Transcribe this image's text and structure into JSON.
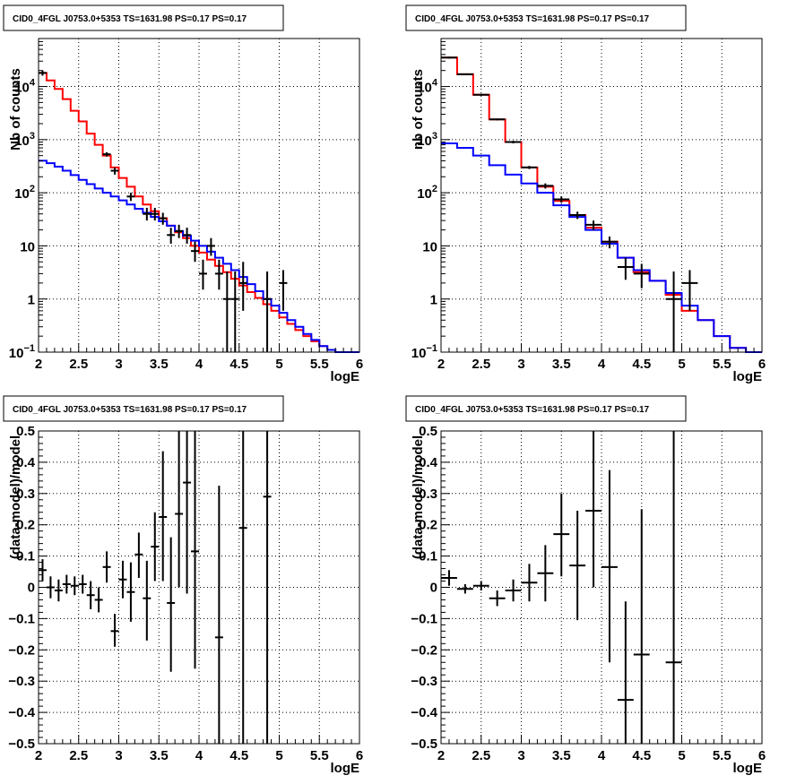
{
  "chart_data": [
    {
      "type": "line",
      "title": "CID0_4FGL J0753.0+5353 TS=1631.98 PS=0.17 PS=0.17",
      "xlabel": "logE",
      "ylabel": "Nb of counts",
      "xlim": [
        2,
        6
      ],
      "ylim": [
        0.1,
        80000
      ],
      "yscale": "log",
      "grid": true,
      "xticks": [
        "2",
        "2.5",
        "3",
        "3.5",
        "4",
        "4.5",
        "5",
        "5.5",
        "6"
      ],
      "yticks": [
        {
          "value": 0.1,
          "label": "10",
          "sup": "−1"
        },
        {
          "value": 1,
          "label": "1",
          "sup": ""
        },
        {
          "value": 10,
          "label": "10",
          "sup": ""
        },
        {
          "value": 100,
          "label": "10",
          "sup": "2"
        },
        {
          "value": 1000,
          "label": "10",
          "sup": "3"
        },
        {
          "value": 10000,
          "label": "10",
          "sup": "4"
        }
      ],
      "series": [
        {
          "kind": "step",
          "color": "#ff0000",
          "binwidth": 0.1,
          "x": [
            2.0,
            2.1,
            2.2,
            2.3,
            2.4,
            2.5,
            2.6,
            2.7,
            2.8,
            2.9,
            3.0,
            3.1,
            3.2,
            3.3,
            3.4,
            3.5,
            3.6,
            3.7,
            3.8,
            3.9,
            4.0,
            4.1,
            4.2,
            4.3,
            4.4,
            4.5,
            4.6,
            4.7,
            4.8,
            4.9,
            5.0,
            5.1,
            5.2,
            5.3,
            5.4,
            5.5,
            5.6,
            5.7,
            5.8,
            5.9
          ],
          "y": [
            18000,
            13000,
            9000,
            5800,
            3500,
            2200,
            1300,
            800,
            500,
            300,
            190,
            130,
            85,
            60,
            45,
            33,
            24,
            18,
            14,
            10,
            7.5,
            5.5,
            4.2,
            3.2,
            2.4,
            1.8,
            1.35,
            1.05,
            0.8,
            0.6,
            0.45,
            0.34,
            0.26,
            0.2,
            0.16,
            0.13,
            0.11,
            0.1,
            0.1,
            0.1
          ]
        },
        {
          "kind": "step",
          "color": "#0000ff",
          "binwidth": 0.1,
          "x": [
            2.0,
            2.1,
            2.2,
            2.3,
            2.4,
            2.5,
            2.6,
            2.7,
            2.8,
            2.9,
            3.0,
            3.1,
            3.2,
            3.3,
            3.4,
            3.5,
            3.6,
            3.7,
            3.8,
            3.9,
            4.0,
            4.1,
            4.2,
            4.3,
            4.4,
            4.5,
            4.6,
            4.7,
            4.8,
            4.9,
            5.0,
            5.1,
            5.2,
            5.3,
            5.4,
            5.5,
            5.6,
            5.7,
            5.8,
            5.9
          ],
          "y": [
            400,
            360,
            310,
            260,
            215,
            175,
            145,
            120,
            100,
            85,
            72,
            60,
            50,
            42,
            35,
            29,
            24,
            19,
            15.5,
            12.5,
            10,
            7.8,
            6,
            4.6,
            3.5,
            2.6,
            1.9,
            1.4,
            1.0,
            0.75,
            0.55,
            0.4,
            0.3,
            0.22,
            0.17,
            0.13,
            0.11,
            0.1,
            0.1,
            0.1
          ]
        },
        {
          "kind": "points",
          "color": "#000000",
          "binwidth": 0.1,
          "x": [
            2.05,
            2.85,
            2.95,
            3.15,
            3.35,
            3.45,
            3.55,
            3.65,
            3.75,
            3.85,
            3.95,
            4.05,
            4.15,
            4.25,
            4.35,
            4.45,
            4.55,
            4.85,
            5.05
          ],
          "y": [
            18000,
            530,
            260,
            85,
            40,
            40,
            33,
            16,
            19,
            16,
            8,
            3,
            10,
            3,
            1,
            1,
            2,
            1,
            2
          ],
          "ylo": [
            16000,
            480,
            220,
            70,
            30,
            30,
            25,
            11,
            14,
            11,
            5,
            1.5,
            6.5,
            1.5,
            0.1,
            0.1,
            0.6,
            0.1,
            0.6
          ],
          "yhi": [
            20000,
            580,
            300,
            100,
            52,
            52,
            42,
            22,
            25,
            22,
            12,
            5.5,
            14,
            5.5,
            3.3,
            3.3,
            5,
            3.3,
            3.5
          ]
        }
      ]
    },
    {
      "type": "line",
      "title": "CID0_4FGL J0753.0+5353 TS=1631.98 PS=0.17 PS=0.17",
      "xlabel": "logE",
      "ylabel": "nb of counts",
      "xlim": [
        2,
        6
      ],
      "ylim": [
        0.1,
        80000
      ],
      "yscale": "log",
      "grid": true,
      "xticks": [
        "2",
        "2.5",
        "3",
        "3.5",
        "4",
        "4.5",
        "5",
        "5.5",
        "6"
      ],
      "yticks": [
        {
          "value": 0.1,
          "label": "10",
          "sup": "−1"
        },
        {
          "value": 1,
          "label": "1",
          "sup": ""
        },
        {
          "value": 10,
          "label": "10",
          "sup": ""
        },
        {
          "value": 100,
          "label": "10",
          "sup": "2"
        },
        {
          "value": 1000,
          "label": "10",
          "sup": "3"
        },
        {
          "value": 10000,
          "label": "10",
          "sup": "4"
        }
      ],
      "series": [
        {
          "kind": "step",
          "color": "#ff0000",
          "binwidth": 0.2,
          "x": [
            2.0,
            2.2,
            2.4,
            2.6,
            2.8,
            3.0,
            3.2,
            3.4,
            3.6,
            3.8,
            4.0,
            4.2,
            4.4,
            4.6,
            4.8,
            5.0,
            5.2,
            5.4,
            5.6,
            5.8
          ],
          "y": [
            35000,
            17000,
            7000,
            2400,
            900,
            300,
            130,
            70,
            38,
            22,
            12,
            6,
            3.2,
            2.2,
            1.2,
            0.6,
            0.4,
            0.2,
            0.12,
            0.1
          ]
        },
        {
          "kind": "step",
          "color": "#0000ff",
          "binwidth": 0.2,
          "x": [
            2.0,
            2.2,
            2.4,
            2.6,
            2.8,
            3.0,
            3.2,
            3.4,
            3.6,
            3.8,
            4.0,
            4.2,
            4.4,
            4.6,
            4.8,
            5.0,
            5.2,
            5.4,
            5.6,
            5.8
          ],
          "y": [
            850,
            700,
            500,
            330,
            220,
            150,
            100,
            58,
            35,
            20,
            11,
            6,
            3.5,
            2.2,
            1.3,
            0.75,
            0.4,
            0.2,
            0.12,
            0.1
          ]
        },
        {
          "kind": "points",
          "color": "#000000",
          "binwidth": 0.2,
          "x": [
            2.1,
            2.3,
            2.5,
            2.7,
            2.9,
            3.1,
            3.3,
            3.5,
            3.7,
            3.9,
            4.1,
            4.3,
            4.5,
            4.9,
            5.1
          ],
          "y": [
            35000,
            17000,
            7000,
            2400,
            900,
            300,
            135,
            75,
            38,
            25,
            12,
            4,
            3,
            1,
            2
          ],
          "ylo": [
            33500,
            16400,
            6700,
            2300,
            850,
            280,
            120,
            65,
            32,
            20,
            9,
            2.3,
            1.6,
            0.1,
            0.6
          ],
          "yhi": [
            36500,
            17600,
            7300,
            2500,
            950,
            320,
            150,
            85,
            44,
            30,
            15,
            6,
            4.6,
            3.3,
            3.5
          ]
        }
      ]
    },
    {
      "type": "scatter",
      "title": "CID0_4FGL J0753.0+5353 TS=1631.98 PS=0.17 PS=0.17",
      "xlabel": "logE",
      "ylabel": "(data-model)/model",
      "xlim": [
        2,
        6
      ],
      "ylim": [
        -0.5,
        0.5
      ],
      "yscale": "linear",
      "grid": true,
      "xticks": [
        "2",
        "2.5",
        "3",
        "3.5",
        "4",
        "4.5",
        "5",
        "5.5",
        "6"
      ],
      "yticks": [
        {
          "value": -0.5,
          "label": "−0.5",
          "sup": ""
        },
        {
          "value": -0.4,
          "label": "−0.4",
          "sup": ""
        },
        {
          "value": -0.3,
          "label": "−0.3",
          "sup": ""
        },
        {
          "value": -0.2,
          "label": "−0.2",
          "sup": ""
        },
        {
          "value": -0.1,
          "label": "−0.1",
          "sup": ""
        },
        {
          "value": 0,
          "label": "0",
          "sup": ""
        },
        {
          "value": 0.1,
          "label": "0.1",
          "sup": ""
        },
        {
          "value": 0.2,
          "label": "0.2",
          "sup": ""
        },
        {
          "value": 0.3,
          "label": "0.3",
          "sup": ""
        },
        {
          "value": 0.4,
          "label": "0.4",
          "sup": ""
        },
        {
          "value": 0.5,
          "label": "0.5",
          "sup": ""
        }
      ],
      "series": [
        {
          "kind": "points",
          "color": "#000000",
          "binwidth": 0.1,
          "x": [
            2.05,
            2.15,
            2.25,
            2.35,
            2.45,
            2.55,
            2.65,
            2.75,
            2.85,
            2.95,
            3.05,
            3.15,
            3.25,
            3.35,
            3.45,
            3.55,
            3.65,
            3.75,
            3.85,
            3.95,
            4.25,
            4.55,
            4.85
          ],
          "y": [
            0.055,
            0.0,
            -0.01,
            0.01,
            0.005,
            0.01,
            -0.025,
            -0.04,
            0.065,
            -0.14,
            0.025,
            -0.015,
            0.105,
            -0.035,
            0.13,
            0.225,
            -0.05,
            0.235,
            0.335,
            0.115,
            -0.16,
            0.19,
            0.29
          ],
          "ylo": [
            0.02,
            -0.035,
            -0.045,
            -0.02,
            -0.025,
            -0.02,
            -0.07,
            -0.08,
            0.015,
            -0.19,
            -0.035,
            -0.11,
            0.03,
            -0.17,
            0.02,
            0.02,
            -0.27,
            0.0,
            -0.02,
            -0.26,
            -0.5,
            -0.5,
            -0.5
          ],
          "yhi": [
            0.09,
            0.035,
            0.025,
            0.04,
            0.035,
            0.04,
            0.02,
            0.0,
            0.115,
            -0.085,
            0.085,
            0.08,
            0.175,
            0.085,
            0.24,
            0.435,
            0.16,
            0.5,
            0.5,
            0.5,
            0.325,
            0.5,
            0.5
          ]
        }
      ]
    },
    {
      "type": "scatter",
      "title": "CID0_4FGL J0753.0+5353 TS=1631.98 PS=0.17 PS=0.17",
      "xlabel": "logE",
      "ylabel": "(data-model)/model",
      "xlim": [
        2,
        6
      ],
      "ylim": [
        -0.5,
        0.5
      ],
      "yscale": "linear",
      "grid": true,
      "xticks": [
        "2",
        "2.5",
        "3",
        "3.5",
        "4",
        "4.5",
        "5",
        "5.5",
        "6"
      ],
      "yticks": [
        {
          "value": -0.5,
          "label": "−0.5",
          "sup": ""
        },
        {
          "value": -0.4,
          "label": "−0.4",
          "sup": ""
        },
        {
          "value": -0.3,
          "label": "−0.3",
          "sup": ""
        },
        {
          "value": -0.2,
          "label": "−0.2",
          "sup": ""
        },
        {
          "value": -0.1,
          "label": "−0.1",
          "sup": ""
        },
        {
          "value": 0,
          "label": "0",
          "sup": ""
        },
        {
          "value": 0.1,
          "label": "0.1",
          "sup": ""
        },
        {
          "value": 0.2,
          "label": "0.2",
          "sup": ""
        },
        {
          "value": 0.3,
          "label": "0.3",
          "sup": ""
        },
        {
          "value": 0.4,
          "label": "0.4",
          "sup": ""
        },
        {
          "value": 0.5,
          "label": "0.5",
          "sup": ""
        }
      ],
      "series": [
        {
          "kind": "points",
          "color": "#000000",
          "binwidth": 0.2,
          "x": [
            2.1,
            2.3,
            2.5,
            2.7,
            2.9,
            3.1,
            3.3,
            3.5,
            3.7,
            3.9,
            4.1,
            4.3,
            4.5,
            4.9
          ],
          "y": [
            0.03,
            -0.005,
            0.005,
            -0.035,
            -0.01,
            0.015,
            0.045,
            0.17,
            0.07,
            0.245,
            0.065,
            -0.36,
            -0.215,
            -0.24
          ],
          "ylo": [
            0.005,
            -0.02,
            -0.01,
            -0.06,
            -0.045,
            -0.045,
            -0.045,
            0.035,
            -0.105,
            0.0,
            -0.24,
            -0.5,
            -0.5,
            -0.5
          ],
          "yhi": [
            0.055,
            0.01,
            0.02,
            -0.01,
            0.025,
            0.075,
            0.135,
            0.3,
            0.245,
            0.5,
            0.375,
            -0.045,
            0.25,
            0.5
          ]
        }
      ]
    }
  ]
}
